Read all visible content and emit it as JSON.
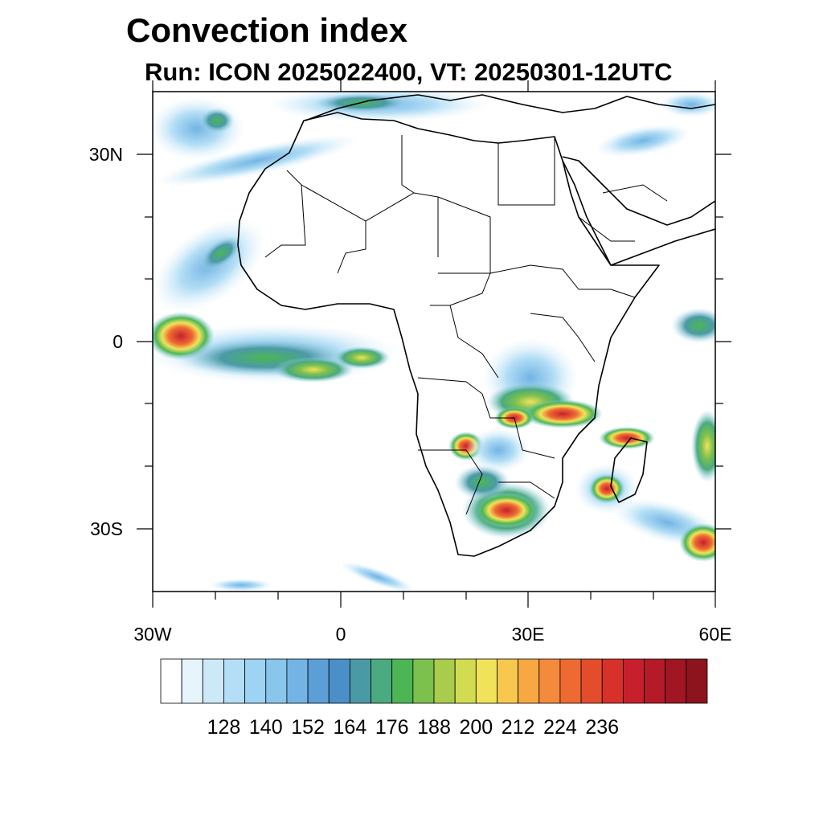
{
  "title": "Convection index",
  "subtitle": "Run: ICON 2025022400,  VT: 20250301-12UTC",
  "map": {
    "lon_range": [
      -30,
      60
    ],
    "lat_range": [
      -40,
      40
    ],
    "x_tick_labels": [
      "30W",
      "0",
      "30E",
      "60E"
    ],
    "y_tick_labels": [
      "30N",
      "0",
      "30S"
    ]
  },
  "colorbar": {
    "colors": [
      "#ffffff",
      "#e6f4fc",
      "#cce9f8",
      "#b3def5",
      "#9dd3f3",
      "#88c6ec",
      "#73b4e4",
      "#5c9fd7",
      "#4a8fc7",
      "#4a9aa6",
      "#4aaa80",
      "#4cb654",
      "#7cc04d",
      "#a9cc4c",
      "#d2dc50",
      "#f0e35a",
      "#f8c84e",
      "#f7a843",
      "#f38a3c",
      "#ee6a33",
      "#e34d2c",
      "#d8312a",
      "#c7202c",
      "#b41a28",
      "#a01622",
      "#8d131d"
    ],
    "labels": [
      "128",
      "140",
      "152",
      "164",
      "176",
      "188",
      "200",
      "212",
      "224",
      "236"
    ]
  }
}
